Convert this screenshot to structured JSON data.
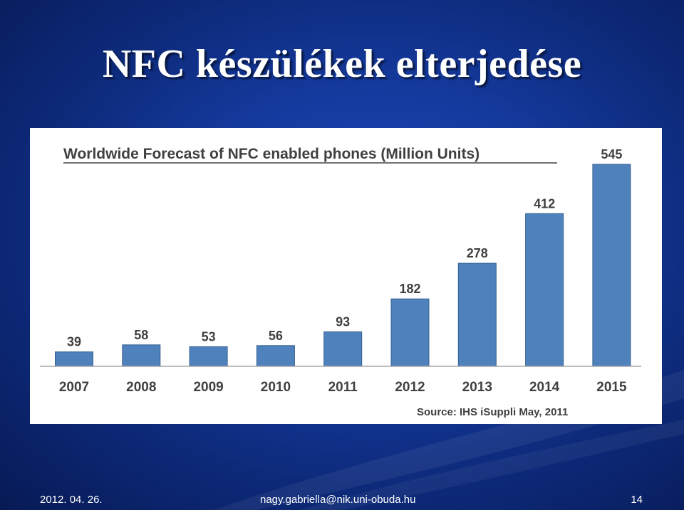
{
  "slide": {
    "title": "NFC készülékek elterjedése"
  },
  "footer": {
    "date": "2012. 04. 26.",
    "email": "nagy.gabriella@nik.uni-obuda.hu",
    "page_number": "14"
  },
  "colors": {
    "bar": "#4f81bd",
    "bar_edge": "#35608f",
    "text": "#404040",
    "axis": "#a6a6a6"
  },
  "chart_data": {
    "type": "bar",
    "title": "Worldwide Forecast of NFC enabled phones (Million Units)",
    "source": "Source: IHS iSuppli May, 2011",
    "categories": [
      "2007",
      "2008",
      "2009",
      "2010",
      "2011",
      "2012",
      "2013",
      "2014",
      "2015"
    ],
    "values": [
      39,
      58,
      53,
      56,
      93,
      182,
      278,
      412,
      545
    ],
    "ylim": [
      0,
      545
    ],
    "grid": false,
    "legend": "none"
  }
}
